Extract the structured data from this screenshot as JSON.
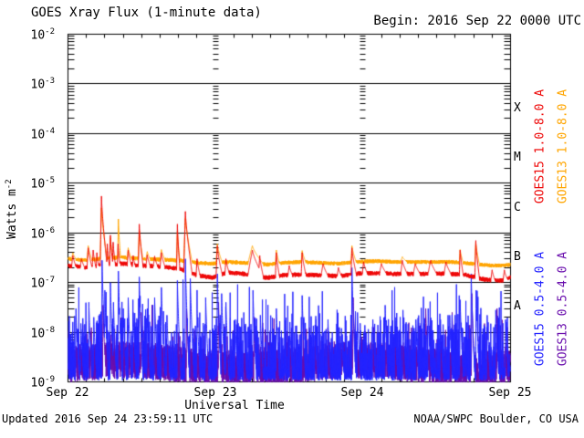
{
  "header": {
    "title": "GOES Xray Flux (1-minute data)",
    "begin": "Begin:  2016 Sep 22 0000 UTC"
  },
  "footer": {
    "updated": "Updated 2016 Sep 24 23:59:11 UTC",
    "source": "NOAA/SWPC Boulder, CO USA"
  },
  "chart_data": {
    "type": "line",
    "title": "GOES Xray Flux (1-minute data)",
    "xlabel": "Universal Time",
    "ylabel_text": "Watts m",
    "ylabel_exp": "-2",
    "x_hours_range": [
      0,
      72
    ],
    "x_tick_labels": [
      "Sep 22",
      "Sep 23",
      "Sep 24",
      "Sep 25"
    ],
    "x_day_hours": [
      0,
      24,
      48,
      72
    ],
    "y_tick_exponents": [
      -2,
      -3,
      -4,
      -5,
      -6,
      -7,
      -8,
      -9
    ],
    "ylim": [
      1e-09,
      0.01
    ],
    "grid": "decade-horizontal-lines, log-minor-ticks, 3h-minor-ticks, day-boundary-tick-columns",
    "flux_classes": [
      {
        "label": "X",
        "exp": -3.5
      },
      {
        "label": "M",
        "exp": -4.5
      },
      {
        "label": "C",
        "exp": -5.5
      },
      {
        "label": "B",
        "exp": -6.5
      },
      {
        "label": "A",
        "exp": -7.5
      }
    ],
    "legend": [
      {
        "label": "GOES15 1.0-8.0 A",
        "color": "#ee0a0a",
        "col": 0,
        "row": 0
      },
      {
        "label": "GOES13 1.0-8.0 A",
        "color": "#ffa500",
        "col": 1,
        "row": 0
      },
      {
        "label": "GOES15 0.5-4.0 A",
        "color": "#2424ff",
        "col": 0,
        "row": 1
      },
      {
        "label": "GOES13 0.5-4.0 A",
        "color": "#6a0fad",
        "col": 1,
        "row": 1
      }
    ],
    "noise_seed": 42,
    "series": [
      {
        "name": "GOES15 1.0-8.0 A",
        "color": "#ee0a0a",
        "kind": "flare",
        "noise_log_amp": 0.045,
        "baseline": [
          [
            0,
            2.2e-07
          ],
          [
            3,
            2e-07
          ],
          [
            6,
            2.3e-07
          ],
          [
            9,
            2.4e-07
          ],
          [
            12,
            2.2e-07
          ],
          [
            15,
            2.1e-07
          ],
          [
            18,
            1.9e-07
          ],
          [
            21,
            1.4e-07
          ],
          [
            23.5,
            1.25e-07
          ],
          [
            26,
            1.6e-07
          ],
          [
            28.5,
            1.5e-07
          ],
          [
            30.5,
            1.35e-07
          ],
          [
            32.5,
            1.25e-07
          ],
          [
            35,
            1.4e-07
          ],
          [
            38,
            1.45e-07
          ],
          [
            41,
            1.4e-07
          ],
          [
            44,
            1.35e-07
          ],
          [
            47,
            1.5e-07
          ],
          [
            50,
            1.55e-07
          ],
          [
            53,
            1.5e-07
          ],
          [
            56,
            1.5e-07
          ],
          [
            59,
            1.5e-07
          ],
          [
            62,
            1.5e-07
          ],
          [
            64.5,
            1.45e-07
          ],
          [
            67,
            1.2e-07
          ],
          [
            69,
            1.1e-07
          ],
          [
            71,
            1.1e-07
          ],
          [
            72,
            1.3e-07
          ]
        ],
        "flares": [
          [
            0.8,
            0.2,
            0.5,
            3.5e-07
          ],
          [
            2.2,
            0.2,
            0.5,
            3e-07
          ],
          [
            3.3,
            0.2,
            0.6,
            5e-07
          ],
          [
            4.1,
            0.15,
            0.4,
            4.5e-07
          ],
          [
            4.7,
            0.1,
            0.3,
            4e-07
          ],
          [
            5.45,
            0.2,
            0.9,
            5.5e-06
          ],
          [
            6.4,
            0.1,
            0.3,
            6e-07
          ],
          [
            6.9,
            0.12,
            0.4,
            9e-07
          ],
          [
            7.35,
            0.1,
            0.35,
            6.5e-07
          ],
          [
            8.15,
            0.1,
            0.3,
            6e-07
          ],
          [
            9.8,
            0.15,
            0.5,
            4.5e-07
          ],
          [
            10.6,
            0.1,
            0.3,
            3.5e-07
          ],
          [
            11.6,
            0.15,
            0.6,
            1.5e-06
          ],
          [
            12.9,
            0.2,
            0.5,
            3.6e-07
          ],
          [
            14.1,
            0.2,
            0.5,
            3.4e-07
          ],
          [
            15.2,
            0.2,
            0.6,
            4e-07
          ],
          [
            17.8,
            0.12,
            0.4,
            1.5e-06
          ],
          [
            19.1,
            0.25,
            1.1,
            2.7e-06
          ],
          [
            21.0,
            0.15,
            0.5,
            3e-07
          ],
          [
            24.3,
            0.2,
            0.8,
            5.5e-07
          ],
          [
            25.7,
            0.15,
            0.5,
            3e-07
          ],
          [
            30.0,
            0.7,
            1.8,
            4.5e-07
          ],
          [
            31.2,
            0.2,
            0.6,
            3.5e-07
          ],
          [
            33.9,
            0.15,
            0.5,
            4e-07
          ],
          [
            36.0,
            0.2,
            0.5,
            2.2e-07
          ],
          [
            38.1,
            0.15,
            0.6,
            4e-07
          ],
          [
            41.5,
            0.3,
            0.8,
            2.4e-07
          ],
          [
            44.0,
            0.2,
            0.5,
            2e-07
          ],
          [
            46.2,
            0.15,
            0.7,
            5e-07
          ],
          [
            48.1,
            0.2,
            0.6,
            2.6e-07
          ],
          [
            51.0,
            0.3,
            0.8,
            2.4e-07
          ],
          [
            54.4,
            0.25,
            0.8,
            2.8e-07
          ],
          [
            56.5,
            0.3,
            0.8,
            2.4e-07
          ],
          [
            59.0,
            0.4,
            1.0,
            2.8e-07
          ],
          [
            61.5,
            0.3,
            0.8,
            2.6e-07
          ],
          [
            63.8,
            0.12,
            0.5,
            4.5e-07
          ],
          [
            66.35,
            0.15,
            0.6,
            7e-07
          ],
          [
            69.0,
            0.2,
            0.5,
            1.8e-07
          ],
          [
            71.0,
            0.2,
            0.5,
            1.8e-07
          ]
        ]
      },
      {
        "name": "GOES13 1.0-8.0 A",
        "color": "#ffa500",
        "kind": "flare",
        "noise_log_amp": 0.04,
        "baseline": [
          [
            0,
            3e-07
          ],
          [
            3,
            2.8e-07
          ],
          [
            6,
            3.1e-07
          ],
          [
            9,
            3.2e-07
          ],
          [
            12,
            3e-07
          ],
          [
            15,
            2.9e-07
          ],
          [
            18,
            2.8e-07
          ],
          [
            21,
            2.5e-07
          ],
          [
            23.5,
            2.4e-07
          ],
          [
            26,
            2.6e-07
          ],
          [
            28.5,
            2.5e-07
          ],
          [
            30.5,
            2.4e-07
          ],
          [
            32.5,
            2.3e-07
          ],
          [
            35,
            2.5e-07
          ],
          [
            38,
            2.6e-07
          ],
          [
            41,
            2.5e-07
          ],
          [
            44,
            2.4e-07
          ],
          [
            47,
            2.6e-07
          ],
          [
            50,
            2.7e-07
          ],
          [
            53,
            2.6e-07
          ],
          [
            56,
            2.6e-07
          ],
          [
            59,
            2.6e-07
          ],
          [
            62,
            2.6e-07
          ],
          [
            64.5,
            2.5e-07
          ],
          [
            67,
            2.3e-07
          ],
          [
            69,
            2.2e-07
          ],
          [
            71,
            2.2e-07
          ],
          [
            72,
            2.3e-07
          ]
        ],
        "flares": [
          [
            0.8,
            0.2,
            0.5,
            4e-07
          ],
          [
            3.3,
            0.2,
            0.6,
            5.5e-07
          ],
          [
            5.45,
            0.2,
            0.9,
            3.2e-06
          ],
          [
            6.9,
            0.12,
            0.4,
            8e-07
          ],
          [
            8.2,
            0.1,
            0.35,
            1.9e-06
          ],
          [
            9.8,
            0.15,
            0.5,
            5e-07
          ],
          [
            11.6,
            0.15,
            0.6,
            1.1e-06
          ],
          [
            12.9,
            0.2,
            0.5,
            4.2e-07
          ],
          [
            15.2,
            0.2,
            0.6,
            4.6e-07
          ],
          [
            17.8,
            0.12,
            0.4,
            1.1e-06
          ],
          [
            19.1,
            0.25,
            1.1,
            2e-06
          ],
          [
            24.3,
            0.2,
            0.8,
            6e-07
          ],
          [
            30.0,
            0.7,
            1.8,
            5.5e-07
          ],
          [
            33.9,
            0.15,
            0.5,
            4.5e-07
          ],
          [
            38.1,
            0.15,
            0.6,
            4.4e-07
          ],
          [
            46.2,
            0.15,
            0.7,
            5.5e-07
          ],
          [
            54.4,
            0.25,
            0.8,
            3.3e-07
          ],
          [
            63.8,
            0.12,
            0.5,
            4.6e-07
          ],
          [
            66.35,
            0.15,
            0.6,
            6.5e-07
          ]
        ]
      },
      {
        "name": "GOES15 0.5-4.0 A",
        "color": "#2424ff",
        "kind": "spiky",
        "base_log": -8.97,
        "base_jitter": 0.28,
        "pop_prob": 0.3,
        "pop_log_amp": 1.1,
        "spikes": [
          [
            1.3,
            3e-08
          ],
          [
            2.1,
            1.5e-08
          ],
          [
            3.4,
            4e-08
          ],
          [
            4.2,
            2e-08
          ],
          [
            5.55,
            2.8e-07
          ],
          [
            6.0,
            7e-08
          ],
          [
            6.9,
            1e-07
          ],
          [
            7.4,
            4e-08
          ],
          [
            8.2,
            1.7e-07
          ],
          [
            9.0,
            3e-08
          ],
          [
            9.8,
            5e-08
          ],
          [
            10.6,
            2.5e-08
          ],
          [
            11.6,
            1.3e-07
          ],
          [
            12.9,
            3e-08
          ],
          [
            14.1,
            5e-08
          ],
          [
            15.2,
            8e-08
          ],
          [
            16.1,
            2.2e-08
          ],
          [
            17.8,
            1.1e-07
          ],
          [
            19.1,
            3e-07
          ],
          [
            19.9,
            1.2e-07
          ],
          [
            21.0,
            3.5e-08
          ],
          [
            22.4,
            5e-08
          ],
          [
            24.3,
            1.5e-07
          ],
          [
            25.0,
            6e-08
          ],
          [
            25.7,
            4e-08
          ],
          [
            27.2,
            1.8e-08
          ],
          [
            28.6,
            2.5e-08
          ],
          [
            30.1,
            7e-08
          ],
          [
            31.3,
            2.2e-08
          ],
          [
            33.9,
            3e-08
          ],
          [
            36.1,
            1.6e-08
          ],
          [
            38.1,
            5.5e-08
          ],
          [
            40.2,
            1.4e-08
          ],
          [
            42.3,
            1.8e-08
          ],
          [
            44.5,
            1.2e-08
          ],
          [
            46.2,
            2e-07
          ],
          [
            47.1,
            2.5e-08
          ],
          [
            49.6,
            1.8e-08
          ],
          [
            51.6,
            3.5e-08
          ],
          [
            53.2,
            1.4e-08
          ],
          [
            54.5,
            2.8e-08
          ],
          [
            56.6,
            1.8e-08
          ],
          [
            58.6,
            3e-08
          ],
          [
            60.6,
            1.8e-08
          ],
          [
            62.1,
            2.2e-08
          ],
          [
            63.8,
            4.5e-08
          ],
          [
            65.6,
            1.5e-07
          ],
          [
            66.4,
            7e-08
          ],
          [
            68.2,
            2.2e-08
          ],
          [
            69.6,
            2.8e-08
          ],
          [
            71.2,
            1.8e-08
          ]
        ]
      },
      {
        "name": "GOES13 0.5-4.0 A",
        "color": "#6a0fad",
        "kind": "band",
        "base_log": -9.03,
        "base_jitter": 0.75,
        "pop_prob": 0.08,
        "pop_log_amp": 0.55,
        "spikes": [
          [
            5.7,
            3.5e-08
          ],
          [
            11.9,
            2.5e-08
          ],
          [
            19.3,
            3e-08
          ],
          [
            24.5,
            4e-08
          ],
          [
            30.3,
            2e-08
          ],
          [
            46.4,
            5e-08
          ],
          [
            58.2,
            3e-08
          ],
          [
            62.5,
            2.5e-08
          ],
          [
            65.7,
            6e-08
          ],
          [
            69.8,
            3e-08
          ]
        ]
      }
    ]
  }
}
